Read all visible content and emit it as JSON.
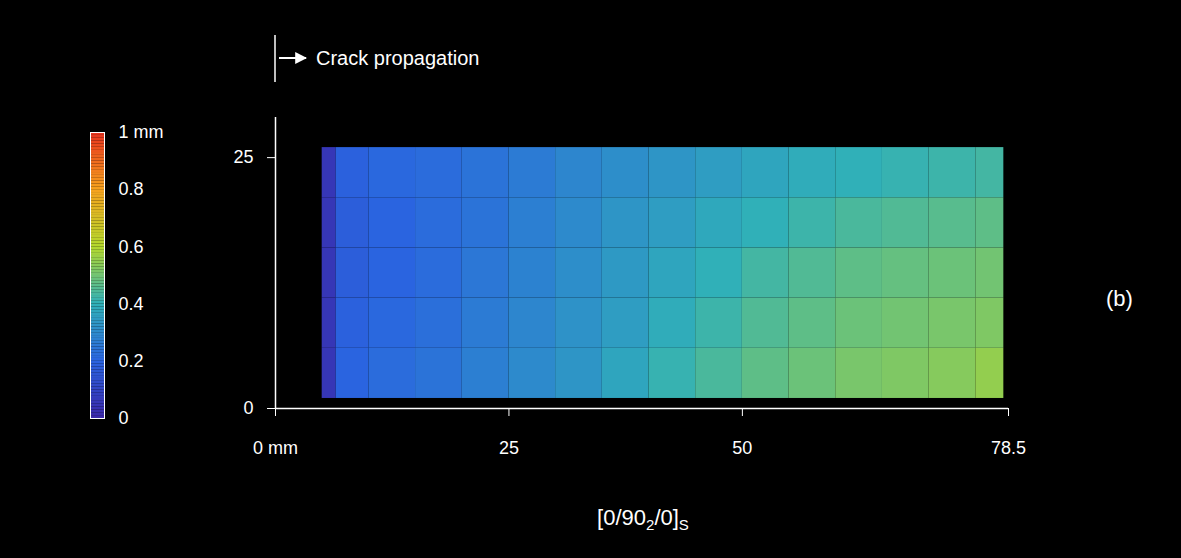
{
  "chart_data": {
    "type": "heatmap",
    "annotation": "Crack propagation",
    "caption_parts": [
      {
        "text": "[0/90"
      },
      {
        "text": "2",
        "sub": true
      },
      {
        "text": "/0]"
      },
      {
        "text": "S",
        "sub": true
      }
    ],
    "panel_label": "(b)",
    "x_edges": [
      5,
      6.5,
      10,
      15,
      20,
      25,
      30,
      35,
      40,
      45,
      50,
      55,
      60,
      65,
      70,
      75,
      78
    ],
    "y_edges": [
      1,
      6,
      11,
      16,
      21,
      26
    ],
    "cells": [
      [
        0.05,
        0.2,
        0.22,
        0.24,
        0.27,
        0.3,
        0.33,
        0.37,
        0.41,
        0.44,
        0.47,
        0.49,
        0.51,
        0.52,
        0.53,
        0.55
      ],
      [
        0.05,
        0.19,
        0.21,
        0.23,
        0.26,
        0.29,
        0.32,
        0.35,
        0.39,
        0.42,
        0.45,
        0.47,
        0.49,
        0.5,
        0.51,
        0.52
      ],
      [
        0.05,
        0.18,
        0.2,
        0.22,
        0.25,
        0.28,
        0.31,
        0.34,
        0.37,
        0.4,
        0.43,
        0.45,
        0.47,
        0.48,
        0.49,
        0.5
      ],
      [
        0.05,
        0.18,
        0.2,
        0.22,
        0.24,
        0.27,
        0.3,
        0.33,
        0.35,
        0.38,
        0.4,
        0.42,
        0.44,
        0.45,
        0.46,
        0.47
      ],
      [
        0.05,
        0.19,
        0.21,
        0.22,
        0.24,
        0.26,
        0.29,
        0.31,
        0.33,
        0.35,
        0.37,
        0.39,
        0.4,
        0.41,
        0.42,
        0.43
      ]
    ],
    "xlim": [
      0,
      78.5
    ],
    "xticks": [
      {
        "value": 0,
        "label": "0 mm"
      },
      25,
      50,
      78.5
    ],
    "ylim": [
      0,
      29
    ],
    "yticks": [
      0,
      25
    ],
    "colorbar": {
      "lim": [
        0,
        1
      ],
      "ticks": [
        0,
        0.2,
        0.4,
        0.6,
        0.8,
        {
          "value": 1,
          "label": "1 mm"
        }
      ]
    }
  }
}
